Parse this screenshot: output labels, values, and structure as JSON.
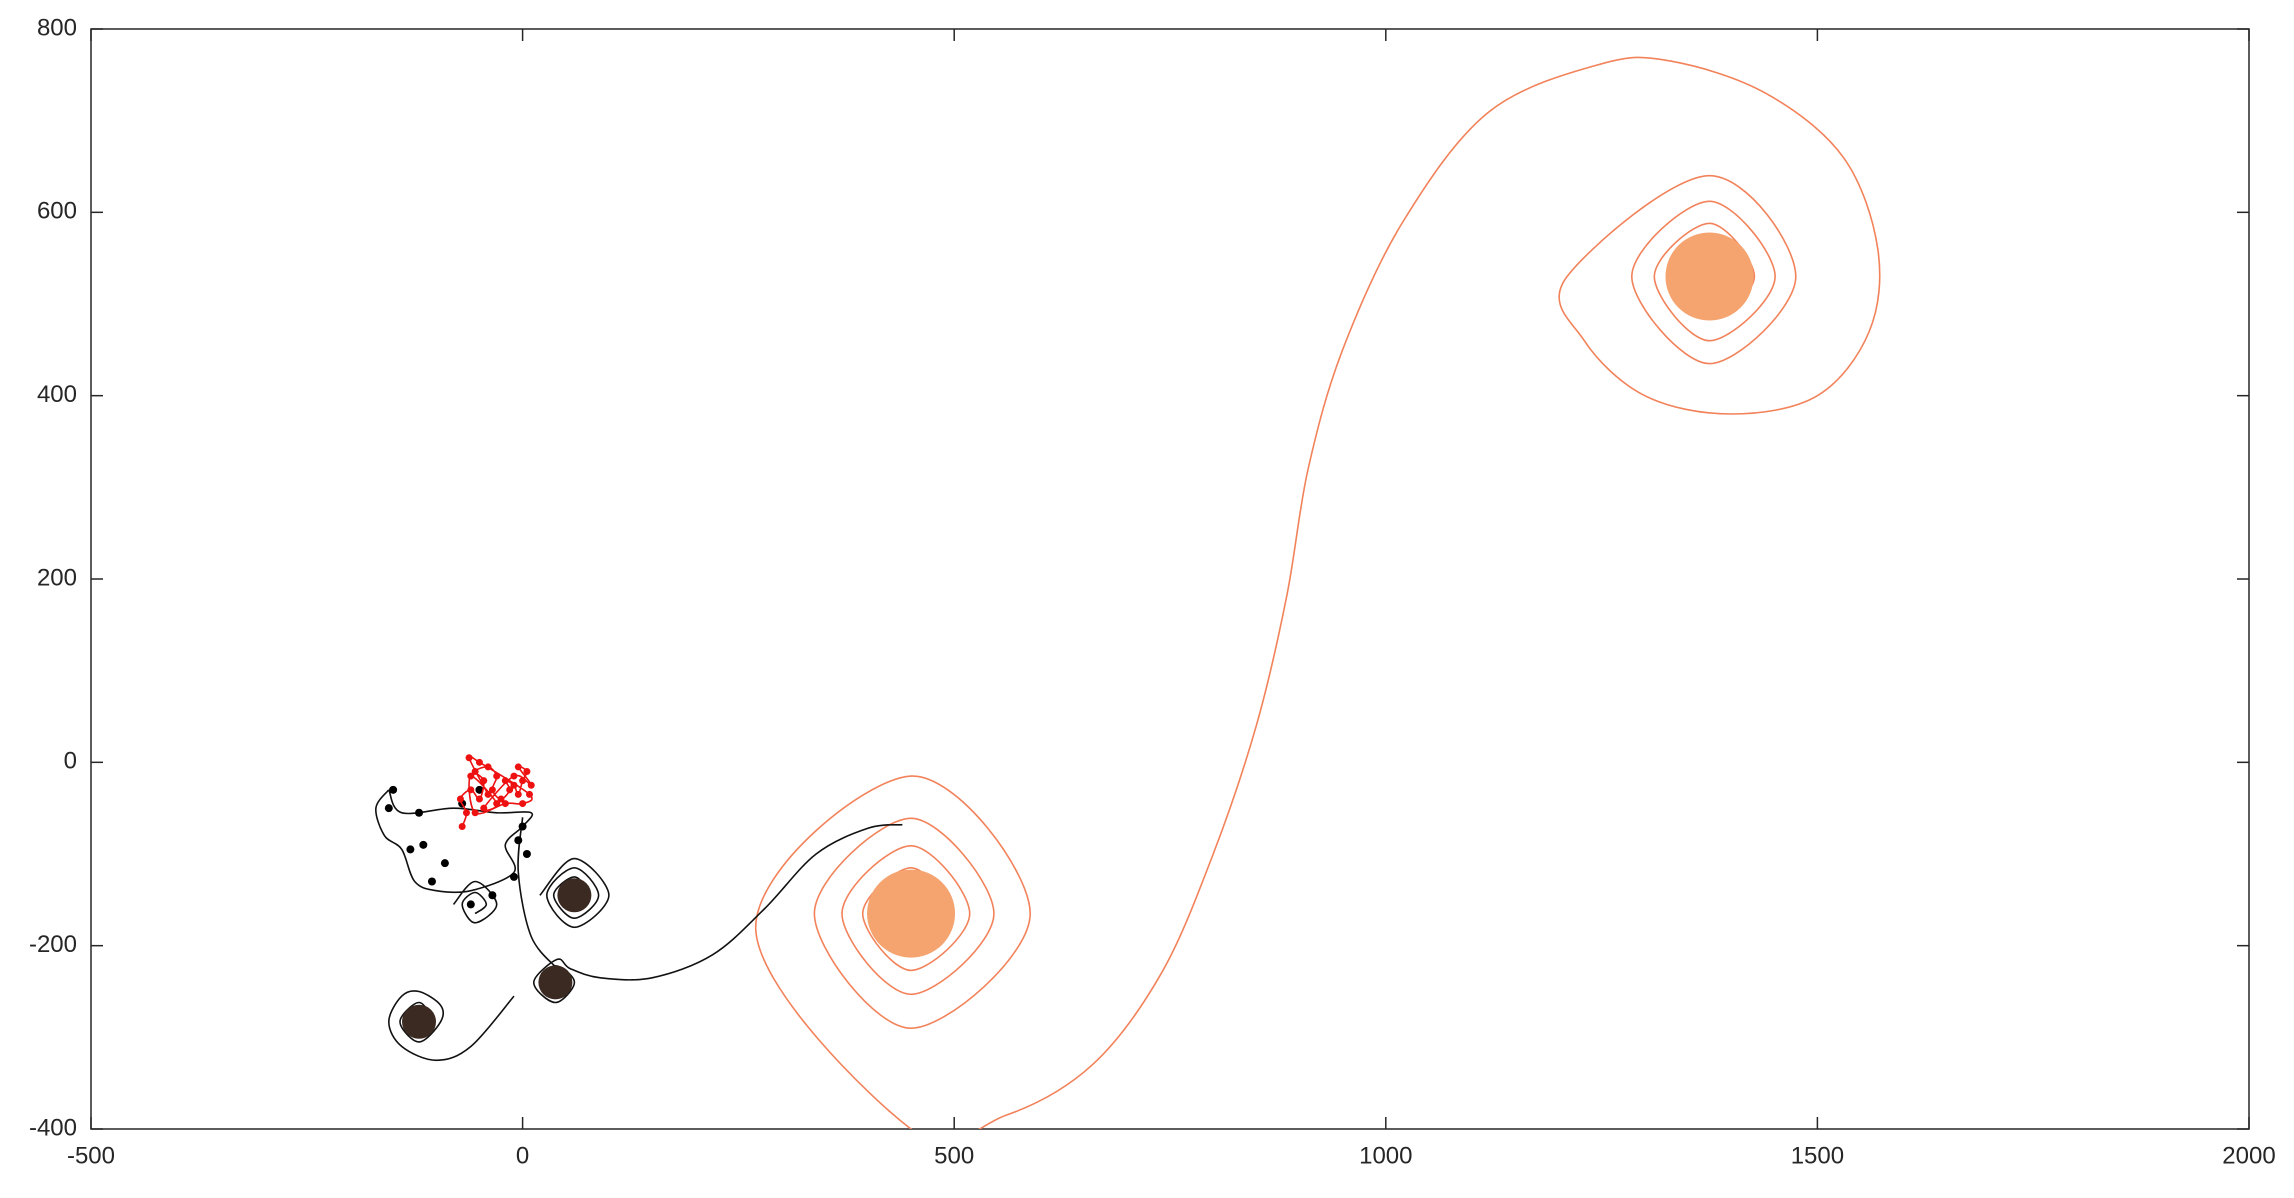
{
  "chart_data": {
    "type": "line",
    "xlim": [
      -500,
      2000
    ],
    "xticks": [
      -500,
      0,
      500,
      1000,
      1500,
      2000
    ],
    "ylim": [
      -400,
      800
    ],
    "yticks": [
      -400,
      -200,
      0,
      200,
      400,
      600,
      800
    ],
    "grid": false,
    "series": [
      {
        "color": "#f2825a",
        "style": "line",
        "x": [
          450,
          435,
          450,
          475,
          450,
          415,
          450,
          495,
          450,
          394,
          450,
          518,
          450,
          370,
          450,
          546,
          450,
          338,
          450,
          588,
          450,
          270,
          450,
          560,
          660,
          740,
          800,
          850,
          885,
          910,
          950,
          1020,
          1120,
          1250,
          1330,
          1440,
          1530,
          1570,
          1560,
          1500,
          1400,
          1300,
          1230,
          1210,
          1375,
          1475,
          1375,
          1285,
          1375,
          1451,
          1375,
          1311,
          1375,
          1427,
          1375,
          1335,
          1375,
          1403,
          1375,
          1359,
          1375,
          1380
        ],
        "y": [
          -155,
          -165,
          -185,
          -165,
          -135,
          -165,
          -205,
          -165,
          -115,
          -165,
          -227,
          -165,
          -91,
          -165,
          -253,
          -165,
          -61,
          -165,
          -290,
          -165,
          -15,
          -180,
          -400,
          -385,
          -330,
          -230,
          -100,
          40,
          180,
          320,
          450,
          590,
          710,
          762,
          765,
          730,
          660,
          560,
          470,
          400,
          380,
          400,
          460,
          530,
          640,
          530,
          435,
          530,
          612,
          530,
          460,
          530,
          588,
          530,
          484,
          530,
          564,
          530,
          508,
          530,
          540,
          530
        ]
      },
      {
        "color": "#111111",
        "style": "line",
        "x": [
          440,
          400,
          340,
          280,
          220,
          150,
          90,
          55,
          40,
          13,
          38,
          60,
          38,
          20,
          38,
          52,
          38,
          30,
          null,
          20,
          60,
          100,
          60,
          28,
          60,
          88,
          60,
          36,
          60,
          76,
          60,
          52,
          null,
          -10,
          -60,
          -100,
          -140,
          -155,
          -140,
          -120,
          -95,
          -95,
          -120,
          -142,
          -120,
          -105,
          -120,
          -130,
          -120,
          null,
          -155,
          -140,
          -80,
          -30,
          10,
          0,
          -20,
          -10,
          -60,
          -100,
          -125,
          -140,
          -160,
          -170,
          -155,
          null,
          -80,
          -55,
          -30,
          -55,
          -70,
          -55,
          -42,
          -55,
          null,
          0,
          -5,
          10,
          40
        ],
        "y": [
          -68,
          -72,
          -100,
          -160,
          -210,
          -235,
          -235,
          -225,
          -215,
          -240,
          -262,
          -240,
          -222,
          -240,
          -255,
          -240,
          -230,
          -240,
          null,
          -145,
          -105,
          -145,
          -180,
          -145,
          -115,
          -145,
          -170,
          -145,
          -125,
          -145,
          -160,
          -145,
          null,
          -255,
          -310,
          -325,
          -310,
          -283,
          -255,
          -250,
          -265,
          -283,
          -305,
          -283,
          -262,
          -283,
          -295,
          -283,
          -275,
          null,
          -30,
          -55,
          -50,
          -55,
          -55,
          -70,
          -90,
          -120,
          -140,
          -140,
          -130,
          -95,
          -80,
          -50,
          -30,
          null,
          -155,
          -130,
          -155,
          -175,
          -155,
          -142,
          -155,
          -165,
          null,
          -60,
          -120,
          -190,
          -225
        ]
      },
      {
        "color": "#000000",
        "style": "markers",
        "x": [
          -150,
          -155,
          -120,
          -130,
          -115,
          -90,
          -105,
          -60,
          -35,
          -50,
          -70,
          0,
          -5,
          -10,
          5
        ],
        "y": [
          -30,
          -50,
          -55,
          -95,
          -90,
          -110,
          -130,
          -155,
          -145,
          -30,
          -45,
          -70,
          -85,
          -125,
          -100
        ]
      },
      {
        "color": "#3b2a22",
        "style": "disk",
        "x": [
          60,
          -120,
          38
        ],
        "y": [
          -145,
          -283,
          -240
        ]
      },
      {
        "color": "#f5a36f",
        "style": "large-disk",
        "x": [
          450,
          1375
        ],
        "y": [
          -165,
          530
        ]
      },
      {
        "color": "#ee1111",
        "style": "line-markers",
        "x": [
          -70,
          -65,
          -72,
          -60,
          -50,
          -45,
          -55,
          -40,
          -30,
          -35,
          -25,
          -15,
          -20,
          -10,
          -5,
          0,
          5,
          -5,
          10,
          -10,
          -45,
          -30,
          -60,
          -55,
          -20,
          0,
          8,
          -50,
          -62,
          -40
        ],
        "y": [
          -70,
          -55,
          -40,
          -30,
          -40,
          -20,
          -10,
          -5,
          -15,
          -30,
          -40,
          -30,
          -20,
          -25,
          -35,
          -20,
          -10,
          -5,
          -25,
          -15,
          -50,
          -45,
          -15,
          -55,
          -45,
          -45,
          -35,
          0,
          5,
          -35
        ]
      }
    ]
  }
}
